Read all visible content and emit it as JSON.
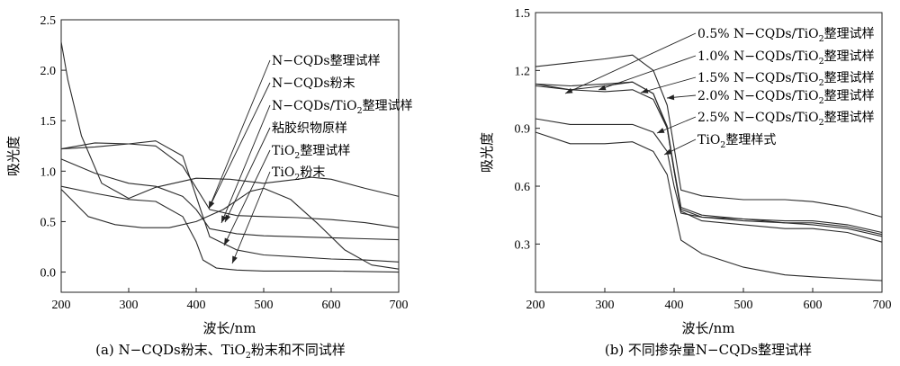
{
  "chart_data": [
    {
      "type": "line",
      "caption_main": "(a) N−CQDs粉末、TiO",
      "caption_sub": "2",
      "caption_tail": "粉末和不同试样",
      "xlabel": "波长/nm",
      "ylabel": "吸光度",
      "xlim": [
        200,
        700
      ],
      "ylim": [
        -0.2,
        2.5
      ],
      "xticks": [
        "200",
        "300",
        "400",
        "500",
        "600",
        "700"
      ],
      "yticks": [
        "0.0",
        "0.5",
        "1.0",
        "1.5",
        "2.0",
        "2.5"
      ],
      "series": [
        {
          "name": "N−CQDs整理试样",
          "x": [
            200,
            250,
            300,
            340,
            380,
            420,
            460,
            500,
            550,
            600,
            650,
            700
          ],
          "y": [
            1.22,
            1.28,
            1.27,
            1.25,
            1.05,
            0.62,
            0.56,
            0.55,
            0.54,
            0.52,
            0.49,
            0.44
          ]
        },
        {
          "name": "N−CQDs粉末",
          "x": [
            200,
            210,
            230,
            260,
            300,
            340,
            400,
            450,
            500,
            550,
            570,
            600,
            650,
            700
          ],
          "y": [
            2.28,
            1.9,
            1.35,
            0.88,
            0.73,
            0.84,
            0.93,
            0.92,
            0.88,
            0.92,
            0.94,
            0.92,
            0.83,
            0.75
          ]
        },
        {
          "name": "N−CQDs/TiO2整理试样",
          "x": [
            200,
            250,
            300,
            340,
            380,
            400,
            420,
            460,
            500,
            550,
            600,
            650,
            700
          ],
          "y": [
            1.12,
            0.98,
            0.88,
            0.85,
            0.75,
            0.62,
            0.43,
            0.38,
            0.36,
            0.35,
            0.34,
            0.33,
            0.32
          ]
        },
        {
          "name": "粘胶织物原样",
          "x": [
            200,
            240,
            280,
            320,
            360,
            400,
            440,
            480,
            500,
            540,
            580,
            620,
            660,
            700
          ],
          "y": [
            0.82,
            0.55,
            0.47,
            0.44,
            0.44,
            0.5,
            0.62,
            0.8,
            0.83,
            0.72,
            0.48,
            0.22,
            0.07,
            0.03
          ]
        },
        {
          "name": "TiO2整理试样",
          "x": [
            200,
            250,
            300,
            340,
            380,
            400,
            420,
            460,
            500,
            550,
            600,
            650,
            700
          ],
          "y": [
            1.22,
            1.24,
            1.27,
            1.3,
            1.15,
            0.75,
            0.35,
            0.22,
            0.17,
            0.15,
            0.13,
            0.12,
            0.1
          ]
        },
        {
          "name": "TiO2粉末",
          "x": [
            200,
            250,
            300,
            340,
            380,
            400,
            410,
            430,
            460,
            500,
            600,
            700
          ],
          "y": [
            0.85,
            0.78,
            0.72,
            0.7,
            0.55,
            0.3,
            0.12,
            0.04,
            0.02,
            0.01,
            0.01,
            0.0
          ]
        }
      ],
      "annotations": [
        {
          "main": "N−CQDs整理试样",
          "sub": "",
          "tail": "",
          "tx": 302,
          "ty": 72,
          "ax": 232,
          "ay": 232
        },
        {
          "main": "N−CQDs粉末",
          "sub": "",
          "tail": "",
          "tx": 302,
          "ty": 97,
          "ax": 232,
          "ay": 232
        },
        {
          "main": "N−CQDs/TiO",
          "sub": "2",
          "tail": "整理试样",
          "tx": 302,
          "ty": 122,
          "ax": 246,
          "ay": 248
        },
        {
          "main": "粘胶织物原样",
          "sub": "",
          "tail": "",
          "tx": 302,
          "ty": 147,
          "ax": 250,
          "ay": 247
        },
        {
          "main": "TiO",
          "sub": "2",
          "tail": "整理试样",
          "tx": 302,
          "ty": 172,
          "ax": 249,
          "ay": 273
        },
        {
          "main": "TiO",
          "sub": "2",
          "tail": "粉末",
          "tx": 302,
          "ty": 196,
          "ax": 258,
          "ay": 293
        }
      ]
    },
    {
      "type": "line",
      "caption_main": "(b) 不同掺杂量N−CQDs整理试样",
      "caption_sub": "",
      "caption_tail": "",
      "xlabel": "波长/nm",
      "ylabel": "吸光度",
      "xlim": [
        200,
        700
      ],
      "ylim": [
        0.05,
        1.5
      ],
      "xticks": [
        "200",
        "300",
        "400",
        "500",
        "600",
        "700"
      ],
      "yticks": [
        "0.3",
        "0.6",
        "0.9",
        "1.2",
        "1.5"
      ],
      "series": [
        {
          "name": "0.5% N−CQDs/TiO2整理试样",
          "x": [
            200,
            250,
            300,
            340,
            370,
            390,
            400,
            410,
            440,
            500,
            560,
            600,
            650,
            700
          ],
          "y": [
            1.22,
            1.24,
            1.26,
            1.28,
            1.2,
            1.02,
            0.8,
            0.58,
            0.55,
            0.53,
            0.53,
            0.52,
            0.49,
            0.44
          ]
        },
        {
          "name": "1.0% N−CQDs/TiO2整理试样",
          "x": [
            200,
            250,
            300,
            340,
            370,
            390,
            400,
            410,
            440,
            500,
            560,
            600,
            650,
            700
          ],
          "y": [
            1.12,
            1.1,
            1.12,
            1.14,
            1.08,
            0.9,
            0.68,
            0.48,
            0.44,
            0.42,
            0.41,
            0.41,
            0.39,
            0.35
          ]
        },
        {
          "name": "1.5% N−CQDs/TiO2整理试样",
          "x": [
            200,
            250,
            300,
            340,
            370,
            390,
            400,
            410,
            440,
            500,
            560,
            600,
            650,
            700
          ],
          "y": [
            1.13,
            1.12,
            1.13,
            1.14,
            1.08,
            0.91,
            0.69,
            0.49,
            0.45,
            0.43,
            0.42,
            0.42,
            0.4,
            0.36
          ]
        },
        {
          "name": "2.0% N−CQDs/TiO2整理试样",
          "x": [
            200,
            250,
            300,
            340,
            370,
            390,
            400,
            410,
            440,
            500,
            560,
            600,
            650,
            700
          ],
          "y": [
            1.13,
            1.1,
            1.09,
            1.1,
            1.05,
            0.9,
            0.68,
            0.47,
            0.42,
            0.4,
            0.38,
            0.38,
            0.36,
            0.31
          ]
        },
        {
          "name": "2.5% N−CQDs/TiO2整理试样",
          "x": [
            200,
            250,
            300,
            340,
            370,
            390,
            400,
            410,
            440,
            500,
            560,
            600,
            650,
            700
          ],
          "y": [
            0.95,
            0.92,
            0.92,
            0.92,
            0.88,
            0.78,
            0.6,
            0.46,
            0.44,
            0.43,
            0.41,
            0.4,
            0.38,
            0.34
          ]
        },
        {
          "name": "TiO2整理样式",
          "x": [
            200,
            250,
            300,
            340,
            370,
            390,
            400,
            410,
            440,
            500,
            560,
            600,
            650,
            700
          ],
          "y": [
            0.88,
            0.82,
            0.82,
            0.83,
            0.78,
            0.66,
            0.48,
            0.32,
            0.25,
            0.18,
            0.14,
            0.13,
            0.12,
            0.11
          ]
        }
      ],
      "annotations": [
        {
          "main": "0.5% N−CQDs/TiO",
          "sub": "2",
          "tail": "整理试样",
          "tx": 775,
          "ty": 42,
          "ax": 628,
          "ay": 104
        },
        {
          "main": "1.0% N−CQDs/TiO",
          "sub": "2",
          "tail": "整理试样",
          "tx": 775,
          "ty": 67,
          "ax": 665,
          "ay": 100
        },
        {
          "main": "1.5% N−CQDs/TiO",
          "sub": "2",
          "tail": "整理试样",
          "tx": 775,
          "ty": 91,
          "ax": 712,
          "ay": 103
        },
        {
          "main": "2.0% N−CQDs/TiO",
          "sub": "2",
          "tail": "整理试样",
          "tx": 775,
          "ty": 111,
          "ax": 741,
          "ay": 109
        },
        {
          "main": "2.5% N−CQDs/TiO",
          "sub": "2",
          "tail": "整理试样",
          "tx": 775,
          "ty": 135,
          "ax": 730,
          "ay": 148
        },
        {
          "main": "TiO",
          "sub": "2",
          "tail": "整理样式",
          "tx": 775,
          "ty": 160,
          "ax": 738,
          "ay": 172
        }
      ]
    }
  ]
}
